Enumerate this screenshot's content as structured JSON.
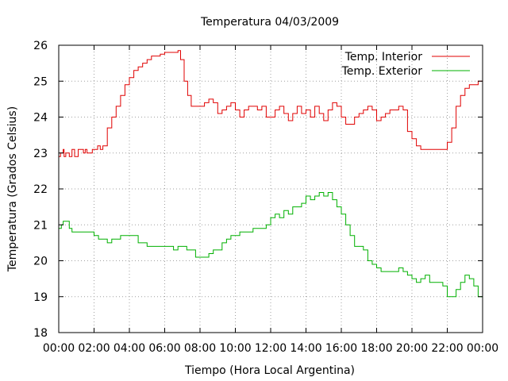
{
  "chart_data": {
    "type": "line",
    "title": "Temperatura 04/03/2009",
    "xlabel": "Tiempo (Hora Local Argentina)",
    "ylabel": "Temperatura (Grados Celsius)",
    "xlim": [
      0,
      24
    ],
    "ylim": [
      18,
      26
    ],
    "xticks": [
      0,
      2,
      4,
      6,
      8,
      10,
      12,
      14,
      16,
      18,
      20,
      22,
      24
    ],
    "xtick_labels": [
      "00:00",
      "02:00",
      "04:00",
      "06:00",
      "08:00",
      "10:00",
      "12:00",
      "14:00",
      "16:00",
      "18:00",
      "20:00",
      "22:00",
      "00:00"
    ],
    "yticks": [
      18,
      19,
      20,
      21,
      22,
      23,
      24,
      25,
      26
    ],
    "ytick_labels": [
      "18",
      "19",
      "20",
      "21",
      "22",
      "23",
      "24",
      "25",
      "26"
    ],
    "grid": true,
    "legend": "top-right",
    "series": [
      {
        "name": "Temp. Interior",
        "color": "#e00000",
        "x": [
          0.0,
          0.1,
          0.25,
          0.3,
          0.4,
          0.5,
          0.6,
          0.75,
          0.9,
          1.0,
          1.1,
          1.25,
          1.4,
          1.5,
          1.6,
          1.75,
          1.9,
          2.0,
          2.2,
          2.35,
          2.5,
          2.75,
          3.0,
          3.25,
          3.5,
          3.75,
          4.0,
          4.25,
          4.5,
          4.75,
          5.0,
          5.25,
          5.5,
          5.75,
          6.0,
          6.25,
          6.5,
          6.75,
          6.9,
          7.1,
          7.3,
          7.5,
          7.75,
          8.0,
          8.25,
          8.5,
          8.75,
          9.0,
          9.25,
          9.5,
          9.75,
          10.0,
          10.25,
          10.5,
          10.75,
          11.0,
          11.25,
          11.5,
          11.75,
          12.0,
          12.25,
          12.5,
          12.75,
          13.0,
          13.25,
          13.5,
          13.75,
          14.0,
          14.25,
          14.5,
          14.75,
          15.0,
          15.25,
          15.5,
          15.75,
          16.0,
          16.25,
          16.5,
          16.75,
          17.0,
          17.25,
          17.5,
          17.75,
          18.0,
          18.25,
          18.5,
          18.75,
          19.0,
          19.25,
          19.5,
          19.75,
          20.0,
          20.25,
          20.5,
          20.75,
          21.0,
          21.25,
          21.5,
          21.75,
          22.0,
          22.25,
          22.5,
          22.75,
          23.0,
          23.25,
          23.5,
          23.75,
          24.0
        ],
        "y": [
          22.9,
          23.0,
          23.1,
          22.9,
          23.0,
          23.0,
          22.9,
          23.1,
          22.9,
          22.9,
          23.1,
          23.1,
          23.0,
          23.1,
          23.0,
          23.0,
          23.1,
          23.1,
          23.2,
          23.1,
          23.2,
          23.7,
          24.0,
          24.3,
          24.6,
          24.9,
          25.1,
          25.3,
          25.4,
          25.5,
          25.6,
          25.7,
          25.7,
          25.75,
          25.8,
          25.8,
          25.8,
          25.85,
          25.6,
          25.0,
          24.6,
          24.3,
          24.3,
          24.3,
          24.4,
          24.5,
          24.4,
          24.1,
          24.2,
          24.3,
          24.4,
          24.2,
          24.0,
          24.2,
          24.3,
          24.3,
          24.2,
          24.3,
          24.0,
          24.0,
          24.2,
          24.3,
          24.1,
          23.9,
          24.1,
          24.3,
          24.1,
          24.2,
          24.0,
          24.3,
          24.1,
          23.9,
          24.2,
          24.4,
          24.3,
          24.0,
          23.8,
          23.8,
          24.0,
          24.1,
          24.2,
          24.3,
          24.2,
          23.9,
          24.0,
          24.1,
          24.2,
          24.2,
          24.3,
          24.2,
          23.6,
          23.4,
          23.2,
          23.1,
          23.1,
          23.1,
          23.1,
          23.1,
          23.1,
          23.3,
          23.7,
          24.3,
          24.6,
          24.8,
          24.9,
          24.9,
          25.0,
          25.05
        ]
      },
      {
        "name": "Temp. Exterior",
        "color": "#00b000",
        "x": [
          0.0,
          0.15,
          0.25,
          0.5,
          0.6,
          0.75,
          1.0,
          1.25,
          1.5,
          1.75,
          2.0,
          2.25,
          2.5,
          2.75,
          3.0,
          3.25,
          3.5,
          3.75,
          4.0,
          4.25,
          4.5,
          4.75,
          5.0,
          5.25,
          5.5,
          5.75,
          6.0,
          6.25,
          6.5,
          6.75,
          7.0,
          7.25,
          7.5,
          7.75,
          8.0,
          8.25,
          8.5,
          8.75,
          9.0,
          9.25,
          9.5,
          9.75,
          10.0,
          10.25,
          10.5,
          10.75,
          11.0,
          11.25,
          11.5,
          11.75,
          12.0,
          12.25,
          12.5,
          12.75,
          13.0,
          13.25,
          13.5,
          13.75,
          14.0,
          14.25,
          14.5,
          14.75,
          15.0,
          15.25,
          15.5,
          15.75,
          16.0,
          16.25,
          16.5,
          16.75,
          17.0,
          17.25,
          17.5,
          17.75,
          18.0,
          18.25,
          18.5,
          18.75,
          19.0,
          19.25,
          19.5,
          19.75,
          20.0,
          20.25,
          20.5,
          20.75,
          21.0,
          21.25,
          21.5,
          21.75,
          22.0,
          22.25,
          22.5,
          22.75,
          23.0,
          23.25,
          23.5,
          23.75,
          24.0
        ],
        "y": [
          20.9,
          21.0,
          21.1,
          21.1,
          20.9,
          20.8,
          20.8,
          20.8,
          20.8,
          20.8,
          20.7,
          20.6,
          20.6,
          20.5,
          20.6,
          20.6,
          20.7,
          20.7,
          20.7,
          20.7,
          20.5,
          20.5,
          20.4,
          20.4,
          20.4,
          20.4,
          20.4,
          20.4,
          20.3,
          20.4,
          20.4,
          20.3,
          20.3,
          20.1,
          20.1,
          20.1,
          20.2,
          20.3,
          20.3,
          20.5,
          20.6,
          20.7,
          20.7,
          20.8,
          20.8,
          20.8,
          20.9,
          20.9,
          20.9,
          21.0,
          21.2,
          21.3,
          21.2,
          21.4,
          21.3,
          21.5,
          21.5,
          21.6,
          21.8,
          21.7,
          21.8,
          21.9,
          21.8,
          21.9,
          21.7,
          21.5,
          21.3,
          21.0,
          20.7,
          20.4,
          20.4,
          20.3,
          20.0,
          19.9,
          19.8,
          19.7,
          19.7,
          19.7,
          19.7,
          19.8,
          19.7,
          19.6,
          19.5,
          19.4,
          19.5,
          19.6,
          19.4,
          19.4,
          19.4,
          19.3,
          19.0,
          19.0,
          19.2,
          19.4,
          19.6,
          19.5,
          19.3,
          19.0,
          18.7
        ]
      }
    ]
  }
}
